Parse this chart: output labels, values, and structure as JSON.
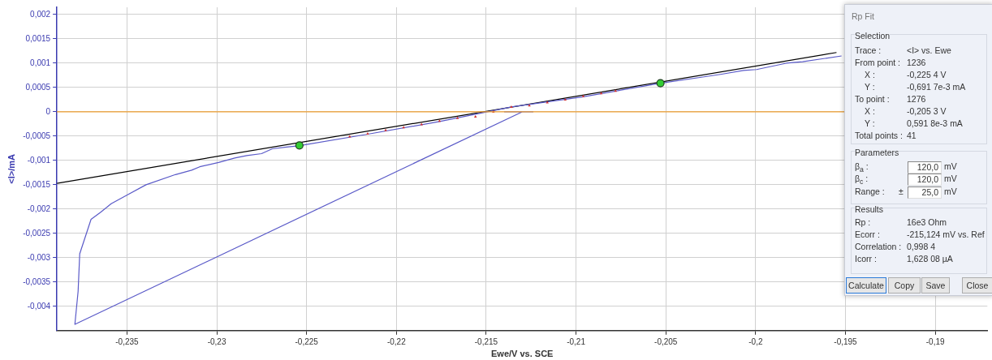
{
  "chart_data": {
    "type": "line",
    "xlabel": "Ewe/V vs. SCE",
    "ylabel": "<I>/mA",
    "xlim": [
      -0.2389,
      -0.1871
    ],
    "ylim": [
      -0.0045,
      0.00215
    ],
    "xticks": [
      {
        "value": -0.235,
        "label": "-0,235"
      },
      {
        "value": -0.23,
        "label": "-0,23"
      },
      {
        "value": -0.225,
        "label": "-0,225"
      },
      {
        "value": -0.22,
        "label": "-0,22"
      },
      {
        "value": -0.215,
        "label": "-0,215"
      },
      {
        "value": -0.21,
        "label": "-0,21"
      },
      {
        "value": -0.205,
        "label": "-0,205"
      },
      {
        "value": -0.2,
        "label": "-0,2"
      },
      {
        "value": -0.195,
        "label": "-0,195"
      },
      {
        "value": -0.19,
        "label": "-0,19"
      }
    ],
    "yticks": [
      {
        "value": -0.004,
        "label": "-0,004"
      },
      {
        "value": -0.0035,
        "label": "-0,0035"
      },
      {
        "value": -0.003,
        "label": "-0,003"
      },
      {
        "value": -0.0025,
        "label": "-0,0025"
      },
      {
        "value": -0.002,
        "label": "-0,002"
      },
      {
        "value": -0.0015,
        "label": "-0,0015"
      },
      {
        "value": -0.001,
        "label": "-0,001"
      },
      {
        "value": -0.0005,
        "label": "-0,0005"
      },
      {
        "value": 0,
        "label": "0"
      },
      {
        "value": 0.0005,
        "label": "0,0005"
      },
      {
        "value": 0.001,
        "label": "0,001"
      },
      {
        "value": 0.0015,
        "label": "0,0015"
      },
      {
        "value": 0.002,
        "label": "0,002"
      }
    ],
    "grid": true,
    "legend": false,
    "ref_lines": [
      {
        "axis": "y",
        "value": 0,
        "color": "#f0a030"
      }
    ],
    "series": [
      {
        "color": "#5a5ac8",
        "x": [
          -0.214,
          -0.2124,
          -0.213,
          -0.2379,
          -0.23772,
          -0.23763,
          -0.237,
          -0.23648,
          -0.23588,
          -0.23499,
          -0.23394,
          -0.2323,
          -0.2314,
          -0.23095,
          -0.2299,
          -0.229,
          -0.22833,
          -0.22751,
          -0.22691,
          -0.22602,
          -0.22545,
          -0.2216,
          -0.2176,
          -0.2136,
          -0.2096,
          -0.2053,
          -0.20287,
          -0.20196,
          -0.20068,
          -0.19995,
          -0.1983,
          -0.19739,
          -0.19522
        ],
        "values": [
          0,
          0,
          0,
          -0.00437,
          -0.00369,
          -0.00292,
          -0.00221,
          -0.00207,
          -0.00189,
          -0.00171,
          -0.0015,
          -0.00129,
          -0.0012,
          -0.00113,
          -0.00104,
          -0.00095,
          -0.0009,
          -0.00086,
          -0.00076,
          -0.00072,
          -0.0007,
          -0.00046,
          -0.0002,
          0.0001,
          0.00031,
          0.00059,
          0.00072,
          0.00077,
          0.00085,
          0.00087,
          0.001,
          0.00103,
          0.00115
        ]
      },
      {
        "color": "#000000",
        "x": [
          -0.2389,
          -0.1955
        ],
        "values": [
          -0.00147,
          0.00122
        ]
      },
      {
        "type": "scatter",
        "color": "#d03030",
        "marker": "triangle",
        "x": [
          -0.2226,
          -0.2216,
          -0.2206,
          -0.2196,
          -0.2186,
          -0.2176,
          -0.2166,
          -0.2156,
          -0.2146,
          -0.2136,
          -0.2126,
          -0.2116,
          -0.2106,
          -0.2096,
          -0.2086,
          -0.2078
        ],
        "values": [
          -0.00051,
          -0.00045,
          -0.00038,
          -0.00032,
          -0.00026,
          -0.00019,
          -0.00013,
          -0.0001,
          0,
          0.0001,
          0.00013,
          0.00019,
          0.00025,
          0.00032,
          0.00038,
          0.00043
        ]
      },
      {
        "type": "scatter",
        "color": "#33cc33",
        "marker": "circle",
        "x": [
          -0.2254,
          -0.2053
        ],
        "values": [
          -0.00069,
          0.00059
        ]
      }
    ],
    "annotations": [
      "Rp Fit",
      "Selection",
      "Trace :",
      "<I> vs. Ewe",
      "From point :",
      "1236",
      "X :",
      "-0,225 4 V",
      "Y :",
      "-0,691 7e-3 mA",
      "To point :",
      "1276",
      "X :",
      "-0,205 3 V",
      "Y :",
      "0,591 8e-3 mA",
      "Total points :",
      "41",
      "Parameters",
      "β$_{a}$ :",
      "120,0",
      "mV",
      "β$_{c}$ :",
      "120,0",
      "mV",
      "Range :",
      "±",
      "25,0",
      "mV",
      "Results",
      "Rp :",
      "16e3 Ohm",
      "Ecorr :",
      "-215,124 mV vs. Ref",
      "Correlation :",
      "0,998 4",
      "Icorr :",
      "1,628 08 µA",
      "Calculate",
      "Copy",
      "Save",
      "Close"
    ]
  }
}
